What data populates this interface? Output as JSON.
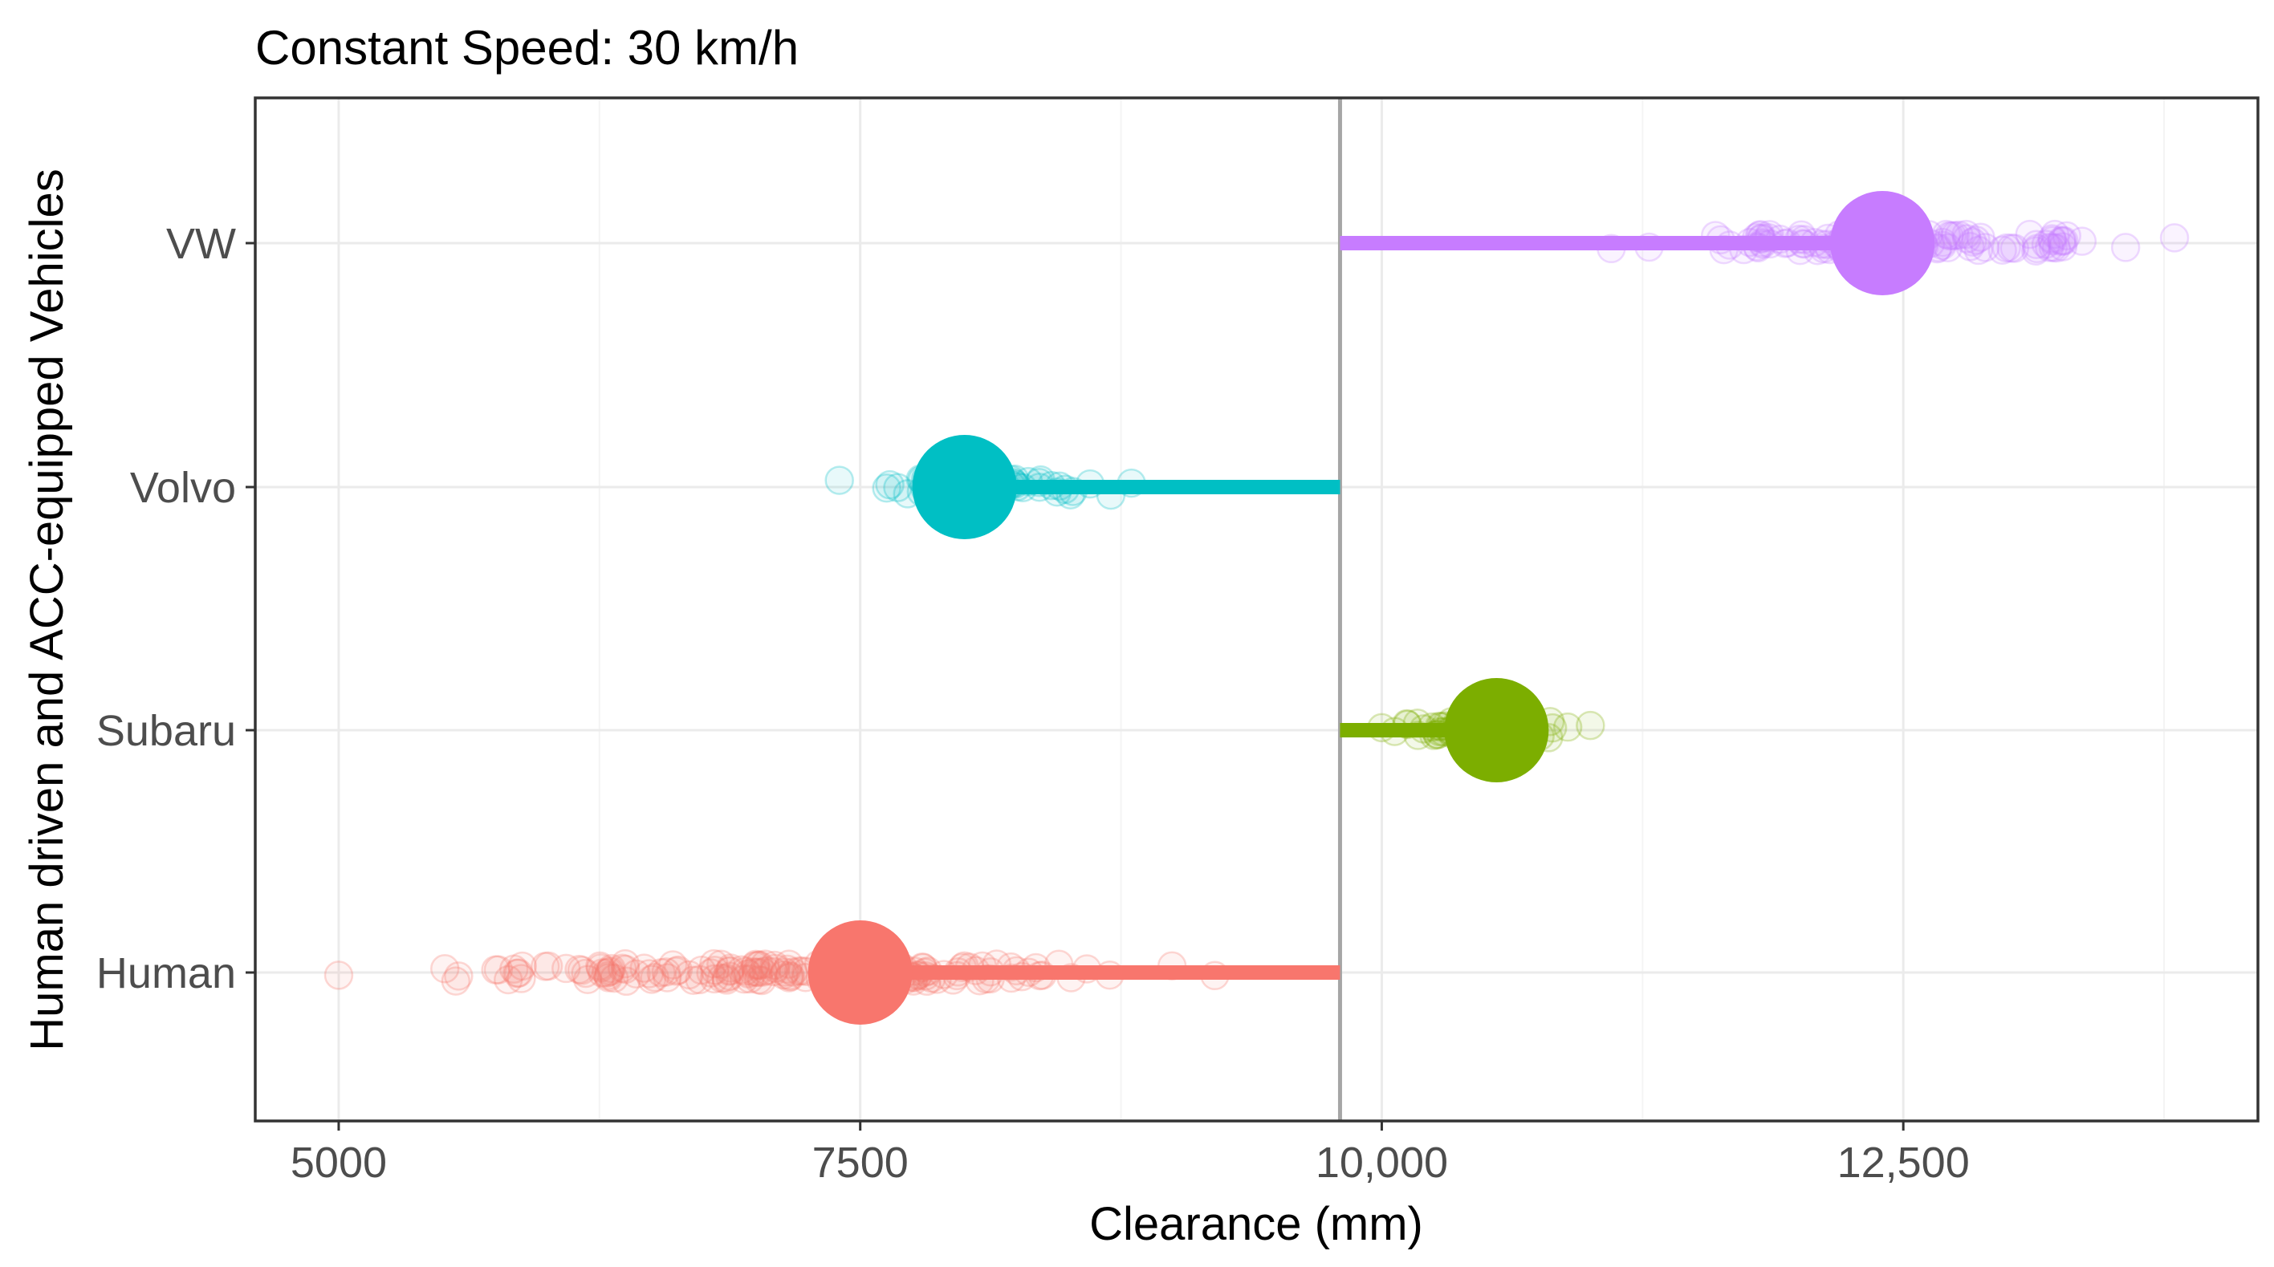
{
  "chart_data": {
    "type": "scatter",
    "title": "Constant Speed: 30 km/h",
    "xlabel": "Clearance (mm)",
    "ylabel": "Human driven and ACC-equipped Vehicles",
    "xlim": [
      4600,
      14200
    ],
    "x_ticks": [
      {
        "value": 5000,
        "label": "5000"
      },
      {
        "value": 7500,
        "label": "7500"
      },
      {
        "value": 10000,
        "label": "10,000"
      },
      {
        "value": 12500,
        "label": "12,500"
      }
    ],
    "categories": [
      "Human",
      "Subaru",
      "Volvo",
      "VW"
    ],
    "reference_line": 9800,
    "grid": true,
    "legend": "none",
    "series": [
      {
        "name": "Human",
        "color": "#F8766D",
        "mean": 7500,
        "range": [
          5000,
          9200
        ]
      },
      {
        "name": "Subaru",
        "color": "#7CAE00",
        "mean": 10550,
        "range": [
          10000,
          11000
        ]
      },
      {
        "name": "Volvo",
        "color": "#00BFC4",
        "mean": 8000,
        "range": [
          7400,
          8800
        ]
      },
      {
        "name": "VW",
        "color": "#C77CFF",
        "mean": 12400,
        "range": [
          11100,
          13800
        ]
      }
    ]
  }
}
